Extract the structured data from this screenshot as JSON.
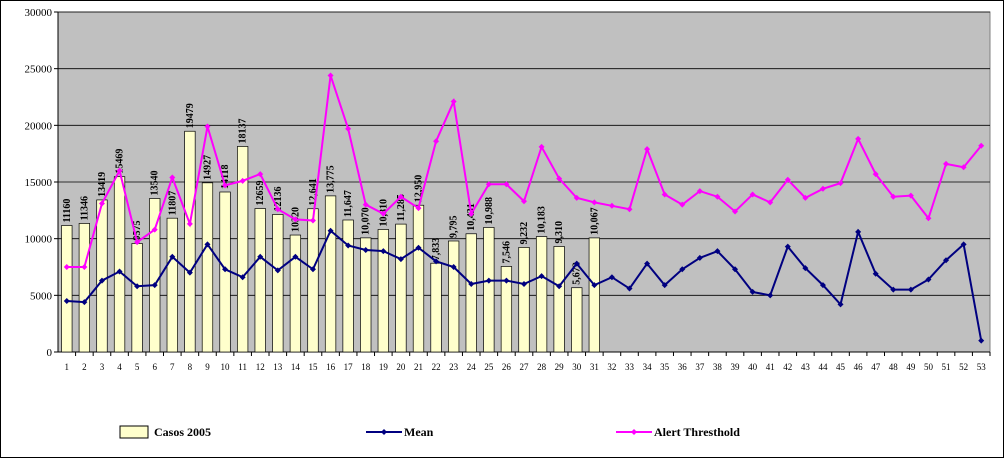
{
  "chart_data": {
    "type": "bar-line",
    "categories": [
      1,
      2,
      3,
      4,
      5,
      6,
      7,
      8,
      9,
      10,
      11,
      12,
      13,
      14,
      15,
      16,
      17,
      18,
      19,
      20,
      21,
      22,
      23,
      24,
      25,
      26,
      27,
      28,
      29,
      30,
      31,
      32,
      33,
      34,
      35,
      36,
      37,
      38,
      39,
      40,
      41,
      42,
      43,
      44,
      45,
      46,
      47,
      48,
      49,
      50,
      51,
      52,
      53
    ],
    "ylim": [
      0,
      30000
    ],
    "yticks": [
      0,
      5000,
      10000,
      15000,
      20000,
      25000,
      30000
    ],
    "grid": true,
    "legend": "bottom",
    "series": [
      {
        "name": "Casos 2005",
        "kind": "bar",
        "color": "#FFFFCC",
        "values": [
          11160,
          11346,
          13419,
          15469,
          9575,
          13540,
          11807,
          19479,
          14927,
          14118,
          18137,
          12659,
          12136,
          10320,
          12641,
          13775,
          11647,
          10070,
          10810,
          11285,
          12950,
          7833,
          9795,
          10431,
          10988,
          7546,
          9232,
          10183,
          9310,
          5672,
          10067,
          null,
          null,
          null,
          null,
          null,
          null,
          null,
          null,
          null,
          null,
          null,
          null,
          null,
          null,
          null,
          null,
          null,
          null,
          null,
          null,
          null,
          null
        ],
        "value_labels": [
          "11160",
          "11346",
          "13419",
          "15469",
          "9575",
          "13540",
          "11807",
          "19479",
          "14927",
          "14118",
          "18137",
          "12659",
          "12136",
          "10320",
          "12,641",
          "13,775",
          "11,647",
          "10,070",
          "10,810",
          "11,285",
          "12,950",
          "7,833",
          "9,795",
          "10,431",
          "10,988",
          "7,546",
          "9,232",
          "10,183",
          "9,310",
          "5,672",
          "10,067",
          null,
          null,
          null,
          null,
          null,
          null,
          null,
          null,
          null,
          null,
          null,
          null,
          null,
          null,
          null,
          null,
          null,
          null,
          null,
          null,
          null,
          null
        ]
      },
      {
        "name": "Mean",
        "kind": "line",
        "color": "#000080",
        "values": [
          4500,
          4400,
          6300,
          7100,
          5800,
          5900,
          8400,
          7000,
          9500,
          7300,
          6600,
          8400,
          7200,
          8400,
          7300,
          10700,
          9400,
          9000,
          8900,
          8200,
          9200,
          8000,
          7500,
          6000,
          6300,
          6300,
          6000,
          6700,
          5800,
          7800,
          5900,
          6600,
          5600,
          7800,
          5900,
          7300,
          8300,
          8900,
          7300,
          5300,
          5000,
          9300,
          7400,
          5900,
          4200,
          10600,
          6900,
          5500,
          5500,
          6400,
          8100,
          9500,
          1000
        ]
      },
      {
        "name": "Alert Thresthold",
        "kind": "line",
        "color": "#FF00FF",
        "values": [
          7500,
          7500,
          13100,
          16000,
          9700,
          10800,
          15400,
          11300,
          19900,
          14700,
          15100,
          15700,
          12600,
          11700,
          11600,
          24400,
          19700,
          13000,
          12200,
          13700,
          12700,
          18600,
          22100,
          12200,
          14800,
          14800,
          13300,
          18100,
          15300,
          13600,
          13200,
          12900,
          12600,
          17900,
          13900,
          13000,
          14200,
          13700,
          12400,
          13900,
          13200,
          15200,
          13600,
          14400,
          14900,
          18800,
          15700,
          13700,
          13800,
          11800,
          16600,
          16300,
          18200
        ]
      }
    ]
  }
}
